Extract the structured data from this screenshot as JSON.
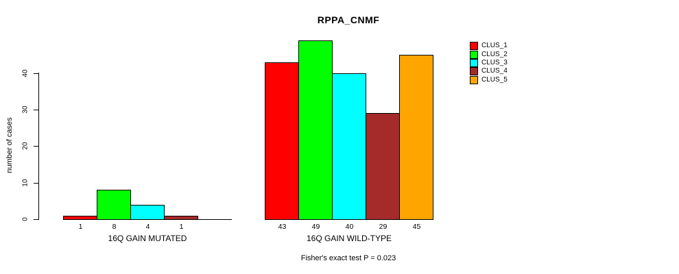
{
  "title": "RPPA_CNMF",
  "y_axis": {
    "label": "number of cases",
    "ticks": [
      0,
      10,
      20,
      30,
      40
    ]
  },
  "legend": {
    "items": [
      {
        "label": "CLUS_1",
        "color": "#ff0000"
      },
      {
        "label": "CLUS_2",
        "color": "#00ff00"
      },
      {
        "label": "CLUS_3",
        "color": "#00ffff"
      },
      {
        "label": "CLUS_4",
        "color": "#a52a2a"
      },
      {
        "label": "CLUS_5",
        "color": "#ffa500"
      }
    ]
  },
  "annotation": "Fisher's exact test P = 0.023",
  "chart_data": {
    "type": "bar",
    "title": "RPPA_CNMF",
    "xlabel": "",
    "ylabel": "number of cases",
    "ylim": [
      0,
      49
    ],
    "yticks": [
      0,
      10,
      20,
      30,
      40
    ],
    "categories": [
      "CLUS_1",
      "CLUS_2",
      "CLUS_3",
      "CLUS_4",
      "CLUS_5"
    ],
    "series_colors": [
      "#ff0000",
      "#00ff00",
      "#00ffff",
      "#a52a2a",
      "#ffa500"
    ],
    "groups": [
      {
        "label": "16Q GAIN MUTATED",
        "values": [
          1,
          8,
          4,
          1,
          0
        ]
      },
      {
        "label": "16Q GAIN WILD-TYPE",
        "values": [
          43,
          49,
          40,
          29,
          45
        ]
      }
    ],
    "bar_value_labels_shown": true,
    "legend_position": "right",
    "grid": false,
    "annotation": "Fisher's exact test P = 0.023"
  }
}
